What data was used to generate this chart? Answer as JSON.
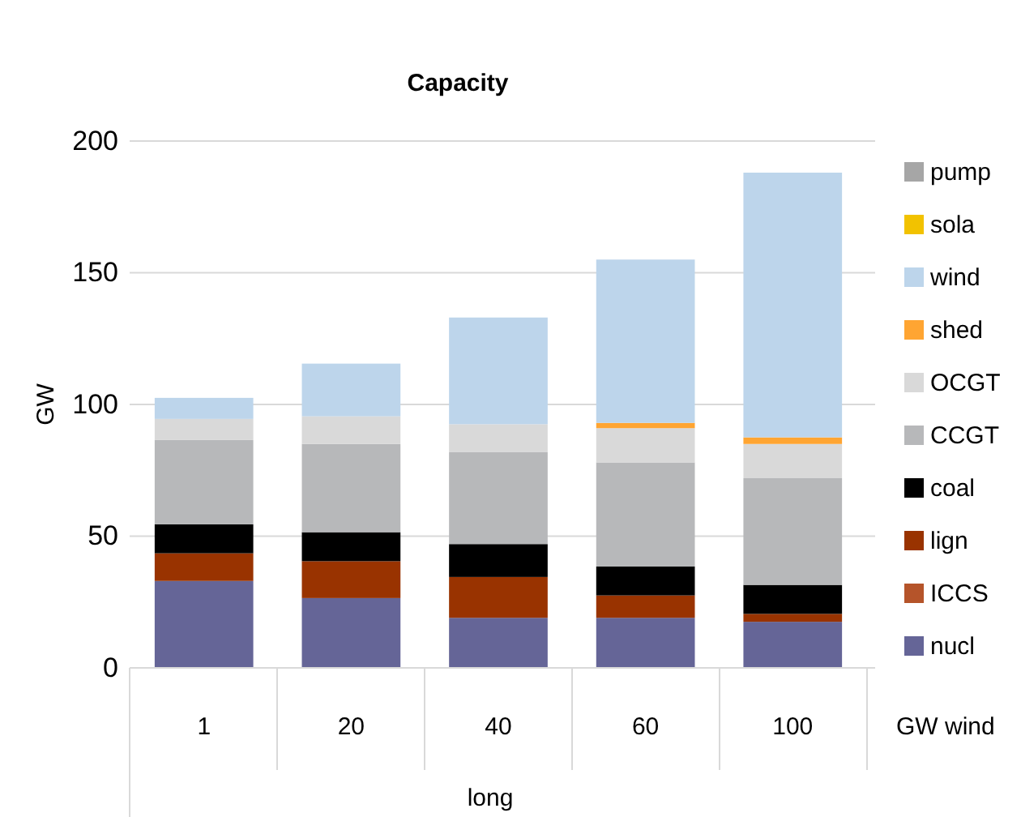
{
  "chart_data": {
    "type": "bar",
    "title": "Capacity",
    "ylabel": "GW",
    "xlabel": "long",
    "annotations": [
      "GW wind"
    ],
    "categories": [
      "1",
      "20",
      "40",
      "60",
      "100"
    ],
    "stacked": true,
    "ylim": [
      0,
      200
    ],
    "yticks": [
      0,
      50,
      100,
      150,
      200
    ],
    "grid": "y",
    "legend": "right",
    "series": [
      {
        "name": "nucl",
        "color": "#656597",
        "values": [
          33,
          26.5,
          19,
          19,
          17.5
        ]
      },
      {
        "name": "ICCS",
        "color": "#b5542a",
        "values": [
          0,
          0,
          0,
          0,
          0
        ]
      },
      {
        "name": "lign",
        "color": "#993300",
        "values": [
          10.5,
          14,
          15.5,
          8.5,
          3
        ]
      },
      {
        "name": "coal",
        "color": "#000000",
        "values": [
          11,
          11,
          12.5,
          11,
          11
        ]
      },
      {
        "name": "CCGT",
        "color": "#b7b8ba",
        "values": [
          32,
          33.5,
          35,
          39.5,
          40.5
        ]
      },
      {
        "name": "OCGT",
        "color": "#d9d9d9",
        "values": [
          8,
          10.5,
          10.5,
          13,
          13
        ]
      },
      {
        "name": "shed",
        "color": "#ffa532",
        "values": [
          0,
          0,
          0,
          2,
          2.5
        ]
      },
      {
        "name": "wind",
        "color": "#bdd5eb",
        "values": [
          8,
          20,
          40.5,
          62,
          100.5
        ]
      },
      {
        "name": "sola",
        "color": "#f2c200",
        "values": [
          0,
          0,
          0,
          0,
          0
        ]
      },
      {
        "name": "pump",
        "color": "#a6a6a6",
        "values": [
          0,
          0,
          0,
          0,
          0
        ]
      }
    ]
  }
}
